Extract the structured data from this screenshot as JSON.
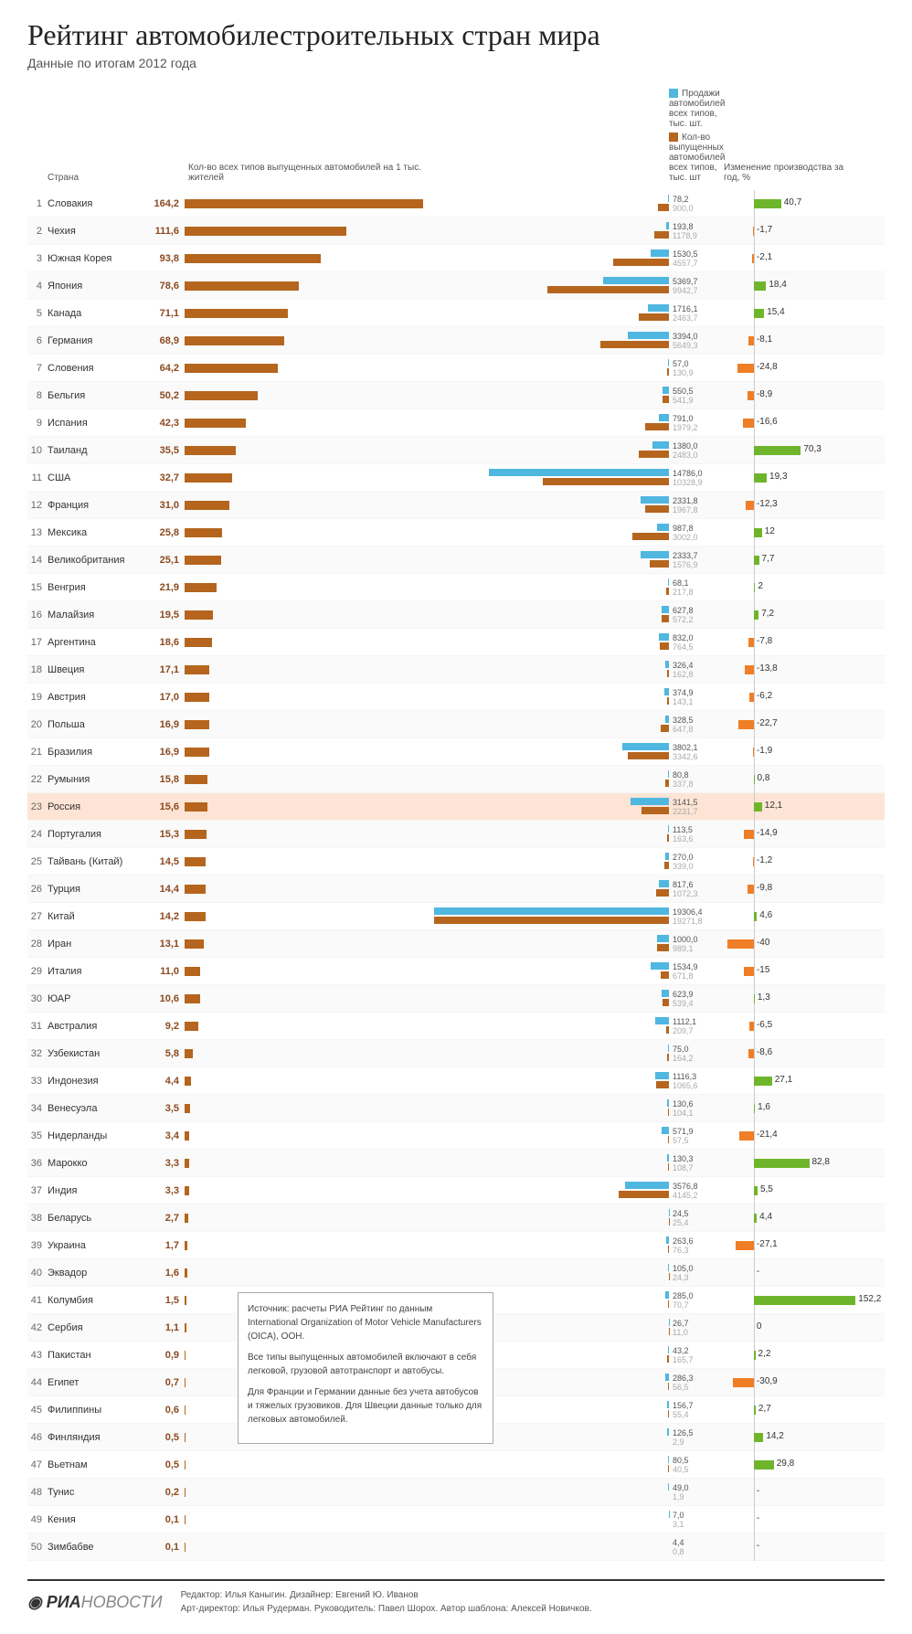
{
  "title": "Рейтинг автомобилестроительных стран мира",
  "subtitle": "Данные по итогам 2012 года",
  "headers": {
    "country": "Страна",
    "percap": "Кол-во всех типов выпущенных автомобилей на 1 тыс. жителей",
    "sales": "Продажи автомобилей всех типов, тыс. шт.",
    "prod": "Кол-во выпущенных автомобилей всех типов, тыс. шт",
    "change": "Изменение производства за год, %"
  },
  "colors": {
    "percap_bar": "#b5651d",
    "sales_bar": "#4fb7e0",
    "prod_bar": "#b5651d",
    "change_pos": "#6fb52c",
    "change_neg": "#f07e26",
    "highlight_bg": "#fde4d4",
    "text_dark": "#333333",
    "text_light": "#aaaaaa",
    "grid": "#dddddd"
  },
  "scales": {
    "percap_max": 170,
    "dual_max": 19500,
    "change_min": -45,
    "change_max": 160
  },
  "notes": [
    "Источник: расчеты РИА Рейтинг по данным International Organization of Motor Vehicle Manufacturers (OICA), ООН.",
    "Все типы выпущенных автомобилей включают в себя легковой, грузовой автотранспорт и автобусы.",
    "Для Франции и Германии данные без учета автобусов и тяжелых грузовиков. Для Швеции данные только для легковых автомобилей."
  ],
  "footer": {
    "logo_a": "РИА",
    "logo_b": "НОВОСТИ",
    "line1": "Редактор: Илья Каныгин. Дизайнер: Евгений Ю. Иванов",
    "line2": "Арт-директор: Илья Рудерман. Руководитель: Павел Шорох. Автор шаблона: Алексей Новичков."
  },
  "rows": [
    {
      "rank": 1,
      "country": "Словакия",
      "percap": 164.2,
      "sales": 78.2,
      "prod": 900.0,
      "change": 40.7
    },
    {
      "rank": 2,
      "country": "Чехия",
      "percap": 111.6,
      "sales": 193.8,
      "prod": 1178.9,
      "change": -1.7
    },
    {
      "rank": 3,
      "country": "Южная Корея",
      "percap": 93.8,
      "sales": 1530.5,
      "prod": 4557.7,
      "change": -2.1
    },
    {
      "rank": 4,
      "country": "Япония",
      "percap": 78.6,
      "sales": 5369.7,
      "prod": 9942.7,
      "change": 18.4
    },
    {
      "rank": 5,
      "country": "Канада",
      "percap": 71.1,
      "sales": 1716.1,
      "prod": 2463.7,
      "change": 15.4
    },
    {
      "rank": 6,
      "country": "Германия",
      "percap": 68.9,
      "sales": 3394.0,
      "prod": 5649.3,
      "change": -8.1
    },
    {
      "rank": 7,
      "country": "Словения",
      "percap": 64.2,
      "sales": 57.0,
      "prod": 130.9,
      "change": -24.8
    },
    {
      "rank": 8,
      "country": "Бельгия",
      "percap": 50.2,
      "sales": 550.5,
      "prod": 541.9,
      "change": -8.9
    },
    {
      "rank": 9,
      "country": "Испания",
      "percap": 42.3,
      "sales": 791.0,
      "prod": 1979.2,
      "change": -16.6
    },
    {
      "rank": 10,
      "country": "Таиланд",
      "percap": 35.5,
      "sales": 1380.0,
      "prod": 2483.0,
      "change": 70.3
    },
    {
      "rank": 11,
      "country": "США",
      "percap": 32.7,
      "sales": 14786.0,
      "prod": 10328.9,
      "change": 19.3
    },
    {
      "rank": 12,
      "country": "Франция",
      "percap": 31.0,
      "sales": 2331.8,
      "prod": 1967.8,
      "change": -12.3
    },
    {
      "rank": 13,
      "country": "Мексика",
      "percap": 25.8,
      "sales": 987.8,
      "prod": 3002.0,
      "change": 12
    },
    {
      "rank": 14,
      "country": "Великобритания",
      "percap": 25.1,
      "sales": 2333.7,
      "prod": 1576.9,
      "change": 7.7
    },
    {
      "rank": 15,
      "country": "Венгрия",
      "percap": 21.9,
      "sales": 68.1,
      "prod": 217.8,
      "change": 2
    },
    {
      "rank": 16,
      "country": "Малайзия",
      "percap": 19.5,
      "sales": 627.8,
      "prod": 572.2,
      "change": 7.2
    },
    {
      "rank": 17,
      "country": "Аргентина",
      "percap": 18.6,
      "sales": 832,
      "prod": 764.5,
      "change": -7.8
    },
    {
      "rank": 18,
      "country": "Швеция",
      "percap": 17.1,
      "sales": 326.4,
      "prod": 162.8,
      "change": -13.8
    },
    {
      "rank": 19,
      "country": "Австрия",
      "percap": 17.0,
      "sales": 374.9,
      "prod": 143.1,
      "change": -6.2
    },
    {
      "rank": 20,
      "country": "Польша",
      "percap": 16.9,
      "sales": 328.5,
      "prod": 647.8,
      "change": -22.7
    },
    {
      "rank": 21,
      "country": "Бразилия",
      "percap": 16.9,
      "sales": 3802.1,
      "prod": 3342.6,
      "change": -1.9
    },
    {
      "rank": 22,
      "country": "Румыния",
      "percap": 15.8,
      "sales": 80.8,
      "prod": 337.8,
      "change": 0.8
    },
    {
      "rank": 23,
      "country": "Россия",
      "percap": 15.6,
      "sales": 3141.5,
      "prod": 2231.7,
      "change": 12.1,
      "highlight": true
    },
    {
      "rank": 24,
      "country": "Португалия",
      "percap": 15.3,
      "sales": 113.5,
      "prod": 163.6,
      "change": -14.9
    },
    {
      "rank": 25,
      "country": "Тайвань (Китай)",
      "percap": 14.5,
      "sales": 270.0,
      "prod": 339.0,
      "change": -1.2
    },
    {
      "rank": 26,
      "country": "Турция",
      "percap": 14.4,
      "sales": 817.6,
      "prod": 1072.3,
      "change": -9.8
    },
    {
      "rank": 27,
      "country": "Китай",
      "percap": 14.2,
      "sales": 19306.4,
      "prod": 19271.8,
      "change": 4.6
    },
    {
      "rank": 28,
      "country": "Иран",
      "percap": 13.1,
      "sales": 1000,
      "prod": 989.1,
      "change": -40
    },
    {
      "rank": 29,
      "country": "Италия",
      "percap": 11.0,
      "sales": 1534.9,
      "prod": 671.8,
      "change": -15
    },
    {
      "rank": 30,
      "country": "ЮАР",
      "percap": 10.6,
      "sales": 623.9,
      "prod": 539.4,
      "change": 1.3
    },
    {
      "rank": 31,
      "country": "Австралия",
      "percap": 9.2,
      "sales": 1112.1,
      "prod": 209.7,
      "change": -6.5
    },
    {
      "rank": 32,
      "country": "Узбекистан",
      "percap": 5.8,
      "sales": 75.0,
      "prod": 164.2,
      "change": -8.6
    },
    {
      "rank": 33,
      "country": "Индонезия",
      "percap": 4.4,
      "sales": 1116.3,
      "prod": 1065.6,
      "change": 27.1
    },
    {
      "rank": 34,
      "country": "Венесуэла",
      "percap": 3.5,
      "sales": 130.6,
      "prod": 104.1,
      "change": 1.6
    },
    {
      "rank": 35,
      "country": "Нидерланды",
      "percap": 3.4,
      "sales": 571.9,
      "prod": 57.5,
      "change": -21.4
    },
    {
      "rank": 36,
      "country": "Марокко",
      "percap": 3.3,
      "sales": 130.3,
      "prod": 108.7,
      "change": 82.8
    },
    {
      "rank": 37,
      "country": "Индия",
      "percap": 3.3,
      "sales": 3576.8,
      "prod": 4145.2,
      "change": 5.5
    },
    {
      "rank": 38,
      "country": "Беларусь",
      "percap": 2.7,
      "sales": 24.5,
      "prod": 25.4,
      "change": 4.4
    },
    {
      "rank": 39,
      "country": "Украина",
      "percap": 1.7,
      "sales": 263.6,
      "prod": 76.3,
      "change": -27.1
    },
    {
      "rank": 40,
      "country": "Эквадор",
      "percap": 1.6,
      "sales": 105.0,
      "prod": 24.3,
      "change": null
    },
    {
      "rank": 41,
      "country": "Колумбия",
      "percap": 1.5,
      "sales": 285.0,
      "prod": 70.7,
      "change": 152.2
    },
    {
      "rank": 42,
      "country": "Сербия",
      "percap": 1.1,
      "sales": 26.7,
      "prod": 11.0,
      "change": 0
    },
    {
      "rank": 43,
      "country": "Пакистан",
      "percap": 0.9,
      "sales": 43.2,
      "prod": 165.7,
      "change": 2.2
    },
    {
      "rank": 44,
      "country": "Египет",
      "percap": 0.7,
      "sales": 286.3,
      "prod": 56.5,
      "change": -30.9
    },
    {
      "rank": 45,
      "country": "Филиппины",
      "percap": 0.6,
      "sales": 156.7,
      "prod": 55.4,
      "change": 2.7
    },
    {
      "rank": 46,
      "country": "Финляндия",
      "percap": 0.5,
      "sales": 126.5,
      "prod": 2.9,
      "change": 14.2
    },
    {
      "rank": 47,
      "country": "Вьетнам",
      "percap": 0.5,
      "sales": 80.5,
      "prod": 40.5,
      "change": 29.8
    },
    {
      "rank": 48,
      "country": "Тунис",
      "percap": 0.2,
      "sales": 49.0,
      "prod": 1.9,
      "change": null
    },
    {
      "rank": 49,
      "country": "Кения",
      "percap": 0.1,
      "sales": 7.0,
      "prod": 3.1,
      "change": null
    },
    {
      "rank": 50,
      "country": "Зимбабве",
      "percap": 0.1,
      "sales": 4.4,
      "prod": 0.8,
      "change": null
    }
  ]
}
